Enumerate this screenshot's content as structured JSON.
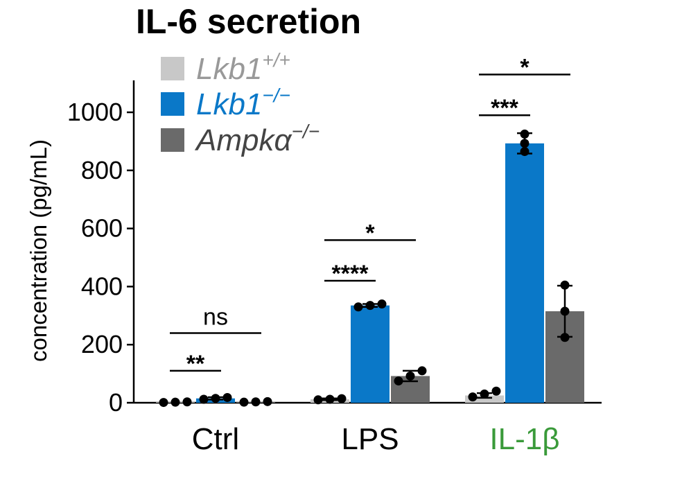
{
  "chart_data": {
    "type": "bar",
    "title": "IL-6 secretion",
    "ylabel": "concentration (pg/mL)",
    "xlabel": "",
    "ylim": [
      0,
      1150
    ],
    "yticks": [
      0,
      200,
      400,
      600,
      800,
      1000
    ],
    "grid": false,
    "legend_position": "top-left",
    "categories": [
      "Ctrl",
      "LPS",
      "IL-1β"
    ],
    "category_colors": [
      "#000000",
      "#000000",
      "#3a9a3a"
    ],
    "series": [
      {
        "legend_base": "Lkb1",
        "legend_sup": "+/+",
        "color": "#c8c8c8",
        "label_color": "#999999",
        "values": [
          2,
          12,
          25
        ],
        "errors": [
          0,
          3,
          8
        ],
        "points": [
          [
            1,
            2,
            3
          ],
          [
            10,
            12,
            14
          ],
          [
            20,
            30,
            40
          ]
        ]
      },
      {
        "legend_base": "Lkb1",
        "legend_sup": "−/−",
        "color": "#0a78c8",
        "label_color": "#0a78c8",
        "values": [
          15,
          335,
          893
        ],
        "errors": [
          4,
          5,
          35
        ],
        "points": [
          [
            12,
            15,
            18
          ],
          [
            330,
            335,
            340
          ],
          [
            865,
            893,
            925
          ]
        ]
      },
      {
        "legend_base": "Ampkα",
        "legend_sup": "−/−",
        "color": "#6a6a6a",
        "label_color": "#444444",
        "values": [
          3,
          92,
          315
        ],
        "errors": [
          0,
          18,
          88
        ],
        "points": [
          [
            2,
            3,
            4
          ],
          [
            75,
            92,
            110
          ],
          [
            225,
            315,
            405
          ]
        ]
      }
    ],
    "significance": [
      {
        "category": 0,
        "from_series": 0,
        "to_series": 1,
        "label": "**",
        "y": 110
      },
      {
        "category": 0,
        "from_series": 0,
        "to_series": 2,
        "label": "ns",
        "y": 240
      },
      {
        "category": 1,
        "from_series": 0,
        "to_series": 1,
        "label": "****",
        "y": 420
      },
      {
        "category": 1,
        "from_series": 0,
        "to_series": 2,
        "label": "*",
        "y": 560
      },
      {
        "category": 2,
        "from_series": 0,
        "to_series": 1,
        "label": "***",
        "y": 990
      },
      {
        "category": 2,
        "from_series": 0,
        "to_series": 2,
        "label": "*",
        "y": 1130
      }
    ]
  }
}
